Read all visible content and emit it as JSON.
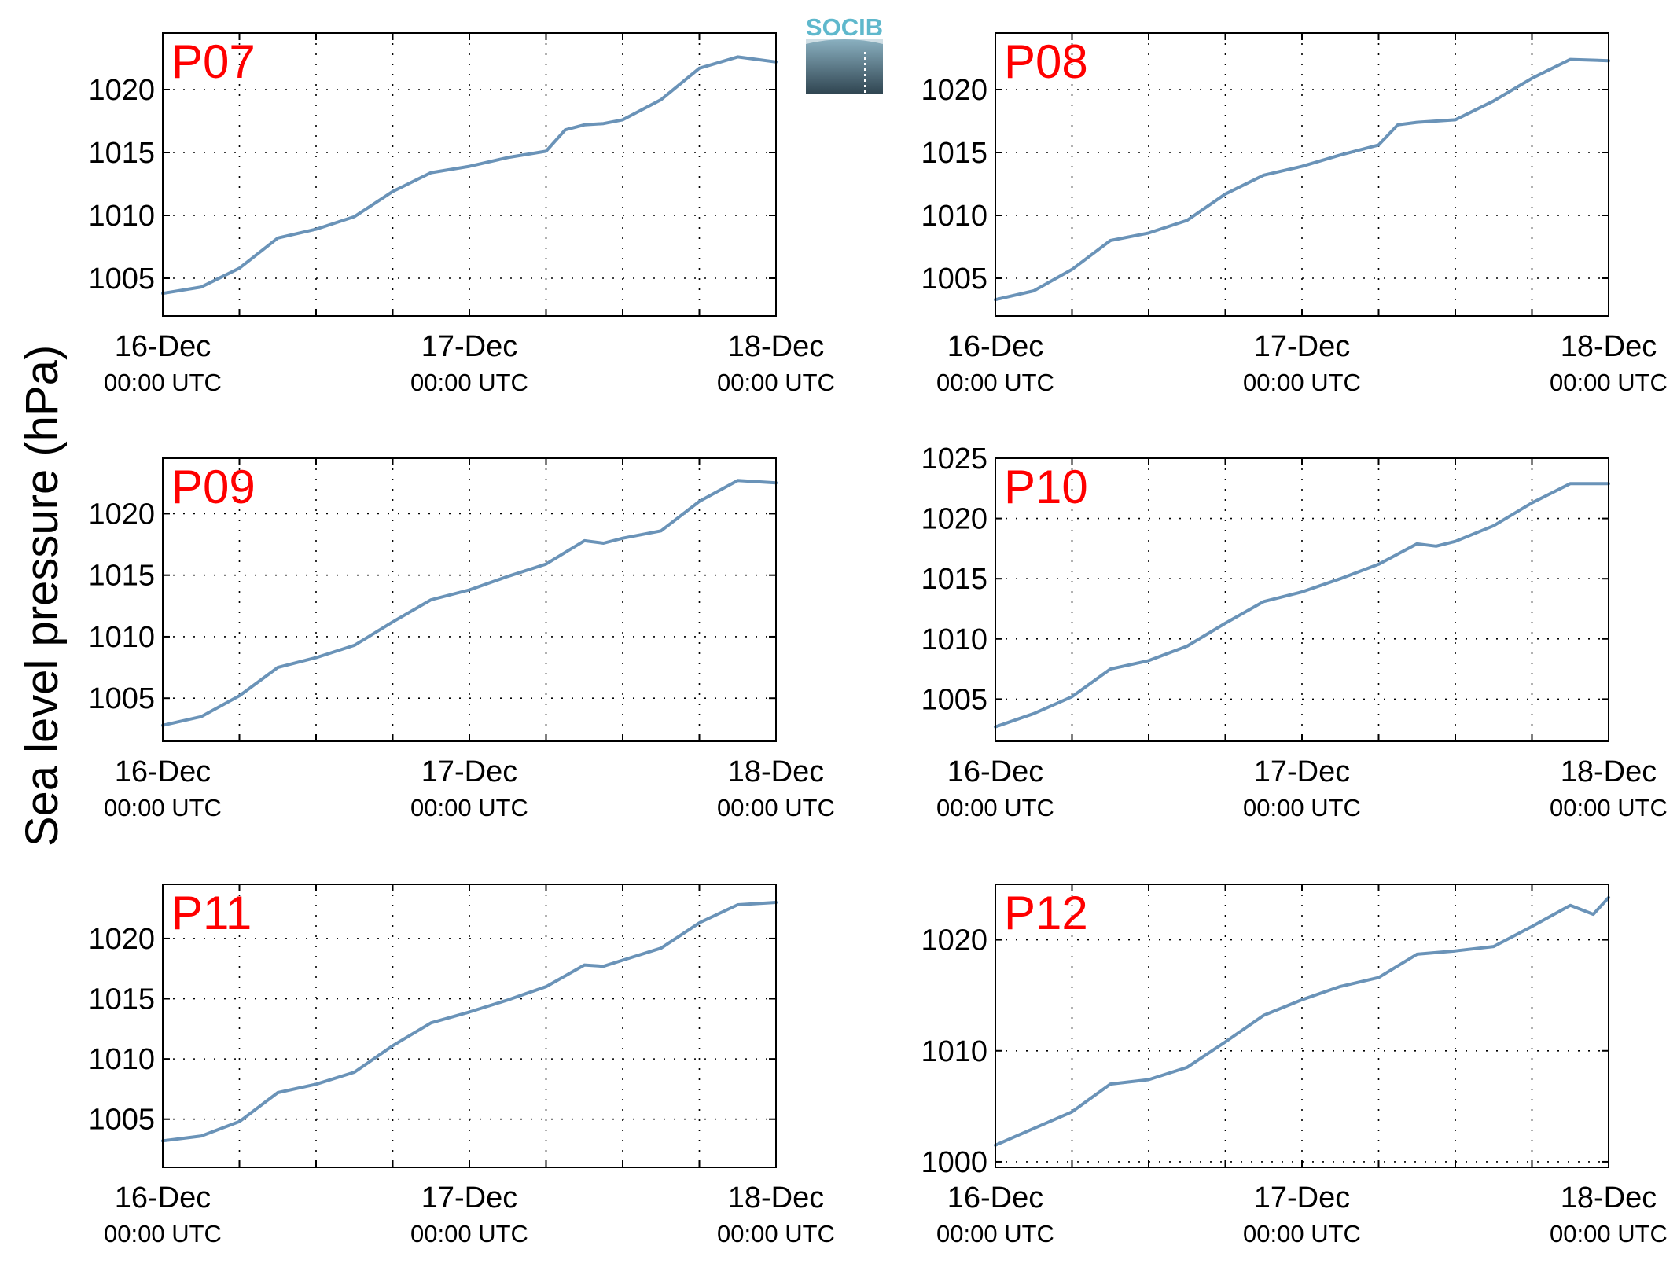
{
  "figure": {
    "ylabel": "Sea level pressure (hPa)",
    "logo_text": "SOCIB",
    "line_color": "#6a93b8",
    "label_color": "#ff0000"
  },
  "chart_data": [
    {
      "type": "line",
      "title": "P07",
      "xlim": [
        0,
        2
      ],
      "ylim": [
        1002,
        1024.5
      ],
      "yticks": [
        1005,
        1010,
        1015,
        1020
      ],
      "xticks": [
        {
          "date": "16-Dec",
          "time": "00:00 UTC"
        },
        {
          "date": "17-Dec",
          "time": "00:00 UTC"
        },
        {
          "date": "18-Dec",
          "time": "00:00 UTC"
        }
      ],
      "x": [
        0,
        0.125,
        0.25,
        0.375,
        0.5,
        0.625,
        0.75,
        0.875,
        1.0,
        1.125,
        1.25,
        1.3125,
        1.375,
        1.4375,
        1.5,
        1.625,
        1.75,
        1.875,
        2.0
      ],
      "y": [
        1003.8,
        1004.3,
        1005.8,
        1008.2,
        1008.9,
        1009.9,
        1011.9,
        1013.4,
        1013.9,
        1014.6,
        1015.1,
        1016.8,
        1017.2,
        1017.3,
        1017.6,
        1019.2,
        1021.7,
        1022.6,
        1022.2
      ]
    },
    {
      "type": "line",
      "title": "P08",
      "xlim": [
        0,
        2
      ],
      "ylim": [
        1002,
        1024.5
      ],
      "yticks": [
        1005,
        1010,
        1015,
        1020
      ],
      "xticks": [
        {
          "date": "16-Dec",
          "time": "00:00 UTC"
        },
        {
          "date": "17-Dec",
          "time": "00:00 UTC"
        },
        {
          "date": "18-Dec",
          "time": "00:00 UTC"
        }
      ],
      "x": [
        0,
        0.125,
        0.25,
        0.375,
        0.5,
        0.625,
        0.75,
        0.875,
        1.0,
        1.125,
        1.25,
        1.3125,
        1.375,
        1.5,
        1.625,
        1.75,
        1.875,
        2.0
      ],
      "y": [
        1003.3,
        1004.0,
        1005.7,
        1008.0,
        1008.6,
        1009.6,
        1011.7,
        1013.2,
        1013.9,
        1014.8,
        1015.6,
        1017.2,
        1017.4,
        1017.6,
        1019.1,
        1020.9,
        1022.4,
        1022.3
      ]
    },
    {
      "type": "line",
      "title": "P09",
      "xlim": [
        0,
        2
      ],
      "ylim": [
        1001.5,
        1024.5
      ],
      "yticks": [
        1005,
        1010,
        1015,
        1020
      ],
      "xticks": [
        {
          "date": "16-Dec",
          "time": "00:00 UTC"
        },
        {
          "date": "17-Dec",
          "time": "00:00 UTC"
        },
        {
          "date": "18-Dec",
          "time": "00:00 UTC"
        }
      ],
      "x": [
        0,
        0.125,
        0.25,
        0.375,
        0.5,
        0.625,
        0.75,
        0.875,
        1.0,
        1.125,
        1.25,
        1.375,
        1.4375,
        1.5,
        1.625,
        1.75,
        1.875,
        2.0
      ],
      "y": [
        1002.8,
        1003.5,
        1005.2,
        1007.5,
        1008.3,
        1009.3,
        1011.2,
        1013.0,
        1013.8,
        1014.9,
        1015.9,
        1017.8,
        1017.6,
        1018.0,
        1018.6,
        1021.0,
        1022.7,
        1022.5
      ]
    },
    {
      "type": "line",
      "title": "P10",
      "xlim": [
        0,
        2
      ],
      "ylim": [
        1001.5,
        1025
      ],
      "yticks": [
        1005,
        1010,
        1015,
        1020,
        1025
      ],
      "xticks": [
        {
          "date": "16-Dec",
          "time": "00:00 UTC"
        },
        {
          "date": "17-Dec",
          "time": "00:00 UTC"
        },
        {
          "date": "18-Dec",
          "time": "00:00 UTC"
        }
      ],
      "x": [
        0,
        0.125,
        0.25,
        0.375,
        0.5,
        0.625,
        0.75,
        0.875,
        1.0,
        1.125,
        1.25,
        1.375,
        1.4375,
        1.5,
        1.625,
        1.75,
        1.875,
        2.0
      ],
      "y": [
        1002.7,
        1003.8,
        1005.2,
        1007.5,
        1008.2,
        1009.4,
        1011.3,
        1013.1,
        1013.9,
        1015.0,
        1016.2,
        1017.9,
        1017.7,
        1018.1,
        1019.4,
        1021.3,
        1022.9,
        1022.9
      ]
    },
    {
      "type": "line",
      "title": "P11",
      "xlim": [
        0,
        2
      ],
      "ylim": [
        1001,
        1024.5
      ],
      "yticks": [
        1005,
        1010,
        1015,
        1020
      ],
      "xticks": [
        {
          "date": "16-Dec",
          "time": "00:00 UTC"
        },
        {
          "date": "17-Dec",
          "time": "00:00 UTC"
        },
        {
          "date": "18-Dec",
          "time": "00:00 UTC"
        }
      ],
      "x": [
        0,
        0.125,
        0.25,
        0.375,
        0.5,
        0.625,
        0.75,
        0.875,
        1.0,
        1.125,
        1.25,
        1.375,
        1.4375,
        1.5,
        1.625,
        1.75,
        1.875,
        2.0
      ],
      "y": [
        1003.2,
        1003.6,
        1004.8,
        1007.2,
        1007.9,
        1008.9,
        1011.1,
        1013.0,
        1013.9,
        1014.9,
        1016.0,
        1017.8,
        1017.7,
        1018.2,
        1019.2,
        1021.3,
        1022.8,
        1023.0
      ]
    },
    {
      "type": "line",
      "title": "P12",
      "xlim": [
        0,
        2
      ],
      "ylim": [
        999.5,
        1025
      ],
      "yticks": [
        1000,
        1010,
        1020
      ],
      "xticks": [
        {
          "date": "16-Dec",
          "time": "00:00 UTC"
        },
        {
          "date": "17-Dec",
          "time": "00:00 UTC"
        },
        {
          "date": "18-Dec",
          "time": "00:00 UTC"
        }
      ],
      "x": [
        0,
        0.125,
        0.25,
        0.375,
        0.5,
        0.625,
        0.75,
        0.875,
        1.0,
        1.125,
        1.25,
        1.375,
        1.5,
        1.625,
        1.75,
        1.875,
        1.95,
        2.0
      ],
      "y": [
        1001.5,
        1003.0,
        1004.5,
        1007.0,
        1007.4,
        1008.5,
        1010.8,
        1013.2,
        1014.6,
        1015.8,
        1016.6,
        1018.7,
        1019.0,
        1019.4,
        1021.2,
        1023.1,
        1022.3,
        1023.8
      ]
    }
  ]
}
